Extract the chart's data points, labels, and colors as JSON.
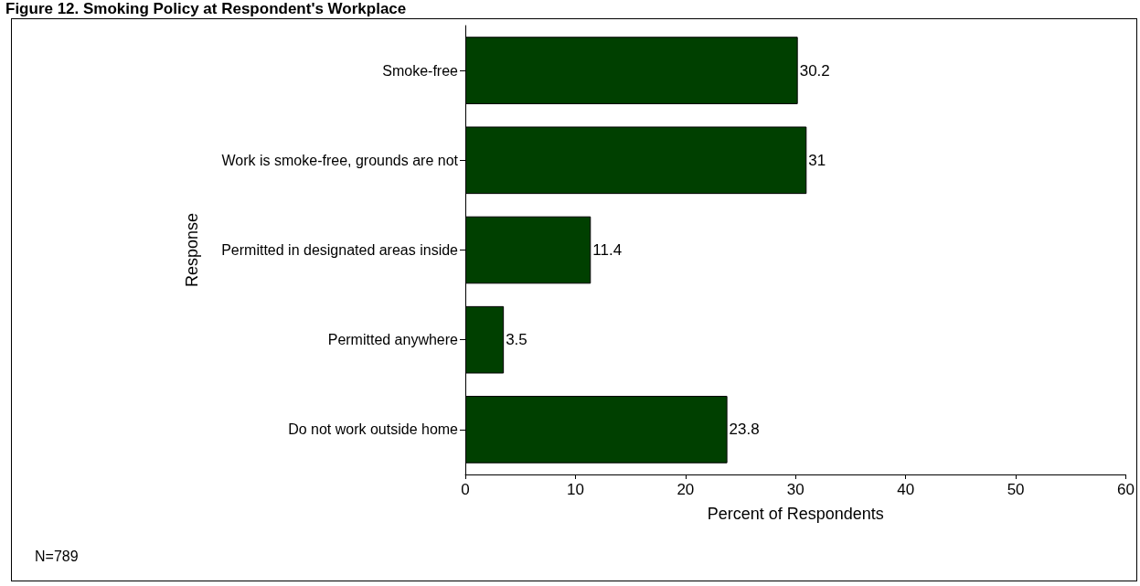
{
  "chart_data": {
    "type": "bar",
    "orientation": "horizontal",
    "title": "Figure 12. Smoking Policy at Respondent's Workplace",
    "categories": [
      "Smoke-free",
      "Work is smoke-free, grounds are not",
      "Permitted in designated areas inside",
      "Permitted anywhere",
      "Do not work outside home"
    ],
    "values": [
      30.2,
      31,
      11.4,
      3.5,
      23.8
    ],
    "color": "#004000",
    "data_labels": true,
    "xlabel": "Percent of Respondents",
    "ylabel": "Response",
    "xlim": [
      0,
      60
    ],
    "xticks": [
      0,
      10,
      20,
      30,
      40,
      50,
      60
    ],
    "grid": false,
    "annotations": [
      "N=789"
    ]
  }
}
